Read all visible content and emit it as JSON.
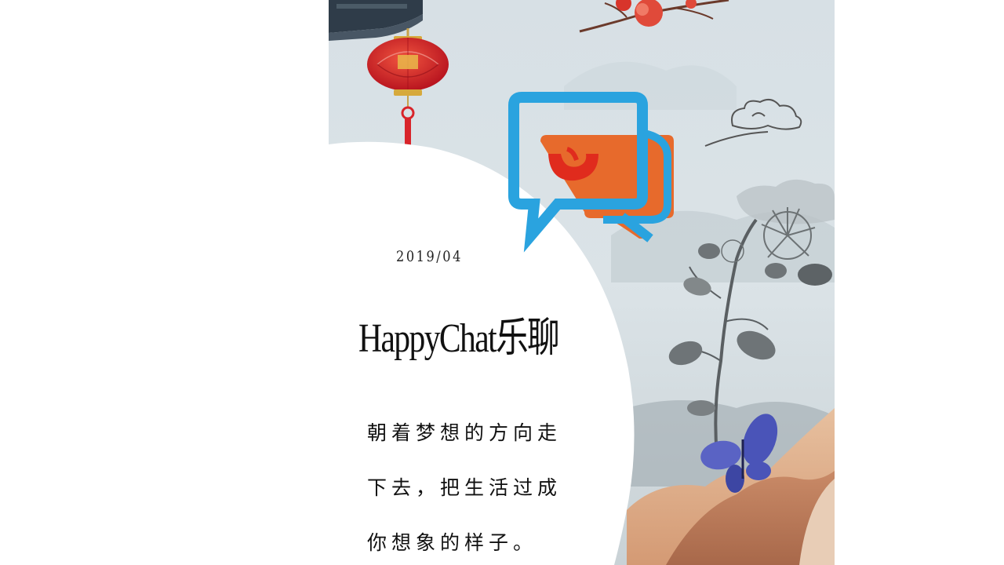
{
  "poster": {
    "date": "2019/04",
    "title": "HappyChat乐聊",
    "slogan_lines": [
      "朝着梦想的方向走",
      "下去，把生活过成",
      "你想象的样子。"
    ]
  },
  "icons": {
    "logo": "chat-bubbles-smile-icon",
    "lantern": "red-lantern-icon",
    "plum": "plum-blossom-icon",
    "cloud": "auspicious-cloud-icon",
    "flower": "ink-chrysanthemum-icon",
    "butterfly": "blue-butterfly-icon",
    "roof": "eave-roof-icon"
  },
  "colors": {
    "background": "#d9e2e6",
    "logo_blue": "#2aa3df",
    "logo_orange": "#e76a2c",
    "logo_red": "#e02b1d",
    "lantern_red": "#d8242a",
    "butterfly_blue": "#4a54b8"
  }
}
